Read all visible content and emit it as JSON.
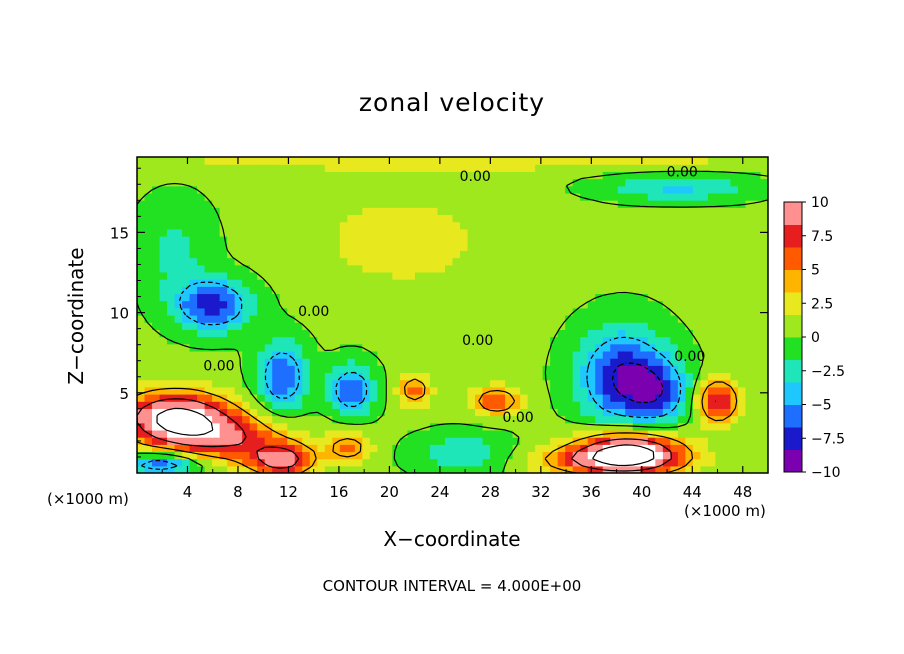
{
  "chart_data": {
    "type": "heatmap",
    "title": "zonal velocity",
    "xlabel": "X−coordinate",
    "ylabel": "Z−coordinate",
    "x_unit": "(×1000 m)",
    "y_unit": "(×1000 m)",
    "xlim": [
      0,
      50
    ],
    "ylim": [
      0,
      19.7
    ],
    "x_ticks": [
      4,
      8,
      12,
      16,
      20,
      24,
      28,
      32,
      36,
      40,
      44,
      48
    ],
    "y_ticks": [
      5,
      10,
      15
    ],
    "x_tick_labels": [
      "4",
      "8",
      "12",
      "16",
      "20",
      "24",
      "28",
      "32",
      "36",
      "40",
      "44",
      "48"
    ],
    "y_tick_labels": [
      "5",
      "10",
      "15"
    ],
    "colorbar": {
      "min": -10,
      "max": 10,
      "ticks": [
        10,
        7.5,
        5,
        2.5,
        0,
        -2.5,
        -5,
        -7.5,
        -10
      ],
      "tick_labels": [
        "10",
        "7.5",
        "5",
        "2.5",
        "0",
        "−2.5",
        "−5",
        "−7.5",
        "−10"
      ],
      "colors": [
        "#7a00b0",
        "#1a1acc",
        "#1e6fff",
        "#1ec8ff",
        "#1ee6b8",
        "#22e022",
        "#a0e81e",
        "#e8e81e",
        "#ffb400",
        "#ff5a00",
        "#e61e1e",
        "#ff9090",
        "#ffffff"
      ]
    },
    "contour_interval_note": "CONTOUR INTERVAL = 4.000E+00",
    "contour_labels": [
      {
        "text": "0.00",
        "x": 26.8,
        "z": 18.5
      },
      {
        "text": "0.00",
        "x": 43.2,
        "z": 18.8
      },
      {
        "text": "0.00",
        "x": 14.0,
        "z": 10.1
      },
      {
        "text": "0.00",
        "x": 27.0,
        "z": 8.3
      },
      {
        "text": "0.00",
        "x": 6.5,
        "z": 6.7
      },
      {
        "text": "0.00",
        "x": 43.8,
        "z": 7.3
      },
      {
        "text": "0.00",
        "x": 30.2,
        "z": 3.5
      }
    ],
    "features": [
      {
        "label": "strong positive jet",
        "x": 3,
        "z": 3.5,
        "value": 12,
        "rx": 4.2,
        "rz": 1.6
      },
      {
        "label": "positive band",
        "x": 7,
        "z": 2.2,
        "value": 7,
        "rx": 5,
        "rz": 1.5
      },
      {
        "label": "positive surface",
        "x": 11.5,
        "z": 0.8,
        "value": 9,
        "rx": 2.5,
        "rz": 1
      },
      {
        "label": "positive core",
        "x": 39,
        "z": 1.4,
        "value": 12,
        "rx": 4,
        "rz": 1.3
      },
      {
        "label": "positive surface",
        "x": 37,
        "z": 0.8,
        "value": 6,
        "rx": 6,
        "rz": 0.9
      },
      {
        "label": "positive cell",
        "x": 46,
        "z": 4.5,
        "value": 8,
        "rx": 1.7,
        "rz": 1.4
      },
      {
        "label": "positive cell",
        "x": 28.5,
        "z": 4.5,
        "value": 6,
        "rx": 2,
        "rz": 0.9
      },
      {
        "label": "positive cell",
        "x": 22,
        "z": 5.2,
        "value": 5.5,
        "rx": 1.3,
        "rz": 1
      },
      {
        "label": "positive cell",
        "x": 16.8,
        "z": 1.6,
        "value": 5,
        "rx": 1.8,
        "rz": 1
      },
      {
        "label": "positive layer",
        "x": 25,
        "z": 19.5,
        "value": 2.5,
        "rx": 25,
        "rz": 0.6
      },
      {
        "label": "positive upper",
        "x": 21,
        "z": 14.5,
        "value": 2.2,
        "rx": 7,
        "rz": 3
      },
      {
        "label": "negative cell",
        "x": 6,
        "z": 10.5,
        "value": -8,
        "rx": 3,
        "rz": 1.6
      },
      {
        "label": "negative cell",
        "x": 11.5,
        "z": 6,
        "value": -7,
        "rx": 2,
        "rz": 2.2
      },
      {
        "label": "negative cell",
        "x": 17,
        "z": 5.2,
        "value": -7,
        "rx": 1.8,
        "rz": 1.6
      },
      {
        "label": "negative cell",
        "x": 38.5,
        "z": 6,
        "value": -8.5,
        "rx": 3.5,
        "rz": 3
      },
      {
        "label": "negative cell",
        "x": 41.5,
        "z": 5,
        "value": -5,
        "rx": 2.5,
        "rz": 2
      },
      {
        "label": "negative lower",
        "x": 2,
        "z": 0.6,
        "value": -7,
        "rx": 3,
        "rz": 0.7
      },
      {
        "label": "negative lower",
        "x": 26,
        "z": 1.2,
        "value": -3.5,
        "rx": 4,
        "rz": 1.3
      },
      {
        "label": "negative upper",
        "x": 43,
        "z": 17.8,
        "value": -4,
        "rx": 6,
        "rz": 0.8
      },
      {
        "label": "negative flank",
        "x": 3,
        "z": 14,
        "value": -2.5,
        "rx": 3,
        "rz": 3
      }
    ]
  }
}
